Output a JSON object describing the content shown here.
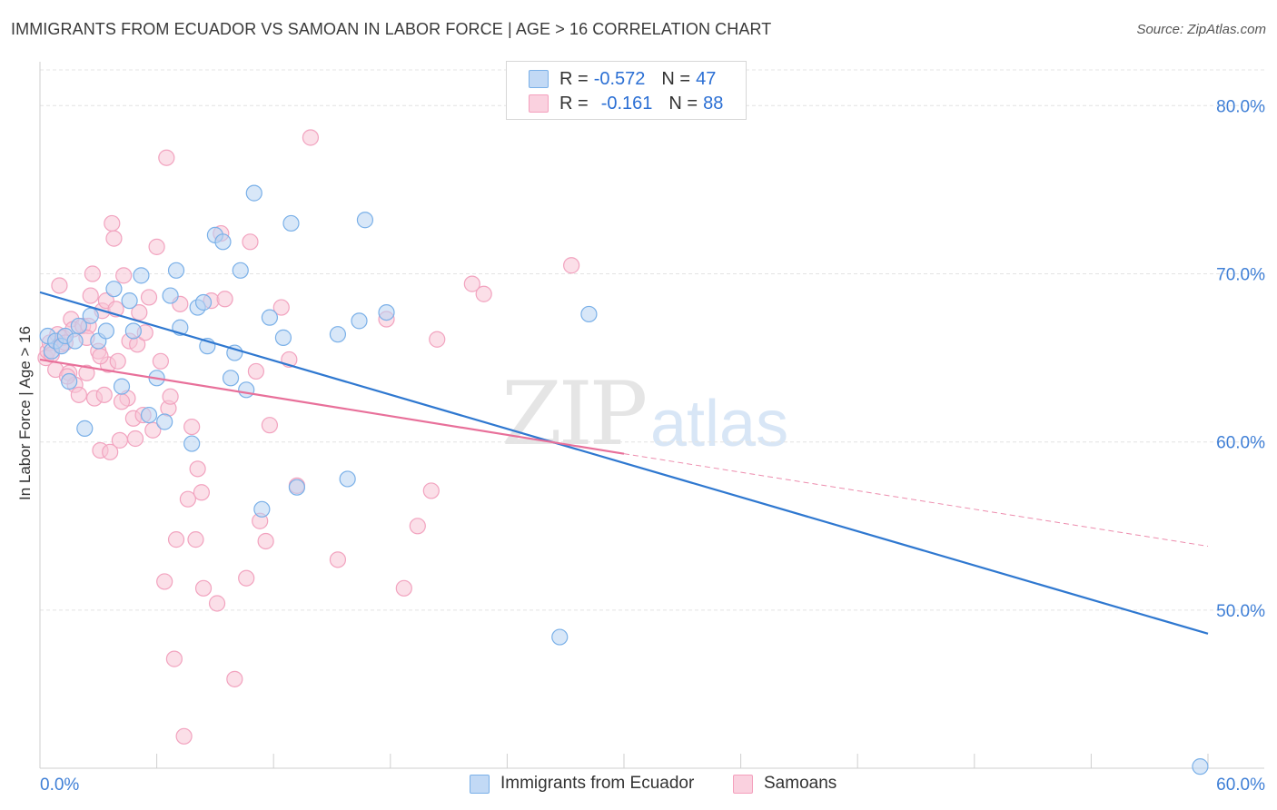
{
  "header": {
    "title": "IMMIGRANTS FROM ECUADOR VS SAMOAN IN LABOR FORCE | AGE > 16 CORRELATION CHART",
    "source": "Source: ZipAtlas.com"
  },
  "watermark": {
    "zip": "ZIP",
    "atlas": "atlas"
  },
  "legend": {
    "rows": [
      {
        "r_label": "R =",
        "r_value": "-0.572",
        "n_label": "N =",
        "n_value": "47",
        "color": "#7ab0e8"
      },
      {
        "r_label": "R =",
        "r_value": "-0.161",
        "n_label": "N =",
        "n_value": "88",
        "color": "#f4a0bd"
      }
    ]
  },
  "bottom_legend": {
    "items": [
      {
        "label": "Immigrants from Ecuador",
        "color": "#7ab0e8"
      },
      {
        "label": "Samoans",
        "color": "#f4a0bd"
      }
    ]
  },
  "chart_data": {
    "type": "scatter",
    "title": "IMMIGRANTS FROM ECUADOR VS SAMOAN IN LABOR FORCE | AGE > 16 CORRELATION CHART",
    "xlabel": "",
    "ylabel": "In Labor Force | Age > 16",
    "xlim": [
      0,
      60
    ],
    "ylim": [
      40.6,
      82.5
    ],
    "x_tick_labels": [
      "0.0%",
      "60.0%"
    ],
    "y_ticks": [
      50,
      60,
      70,
      80
    ],
    "y_tick_labels": [
      "50.0%",
      "60.0%",
      "70.0%",
      "80.0%"
    ],
    "grid": true,
    "legend_position": "top-center",
    "series": [
      {
        "name": "Immigrants from Ecuador",
        "color": "#2f78d0",
        "fill": "#b8d3f2",
        "trend": {
          "x": [
            0,
            60
          ],
          "y": [
            68.9,
            48.6
          ],
          "style": "solid"
        },
        "points": [
          [
            0.4,
            66.3
          ],
          [
            0.6,
            65.4
          ],
          [
            0.8,
            66.0
          ],
          [
            1.1,
            65.7
          ],
          [
            1.3,
            66.3
          ],
          [
            1.5,
            63.6
          ],
          [
            1.8,
            66.0
          ],
          [
            2.0,
            66.9
          ],
          [
            2.3,
            60.8
          ],
          [
            2.6,
            67.5
          ],
          [
            3.0,
            66.0
          ],
          [
            3.4,
            66.6
          ],
          [
            3.8,
            69.1
          ],
          [
            4.2,
            63.3
          ],
          [
            4.6,
            68.4
          ],
          [
            4.8,
            66.6
          ],
          [
            5.2,
            69.9
          ],
          [
            5.6,
            61.6
          ],
          [
            6.0,
            63.8
          ],
          [
            6.4,
            61.2
          ],
          [
            6.7,
            68.7
          ],
          [
            7.0,
            70.2
          ],
          [
            7.2,
            66.8
          ],
          [
            7.8,
            59.9
          ],
          [
            8.1,
            68.0
          ],
          [
            8.4,
            68.3
          ],
          [
            8.6,
            65.7
          ],
          [
            9.0,
            72.3
          ],
          [
            9.4,
            71.9
          ],
          [
            9.8,
            63.8
          ],
          [
            10.0,
            65.3
          ],
          [
            10.3,
            70.2
          ],
          [
            10.6,
            63.1
          ],
          [
            11.0,
            74.8
          ],
          [
            11.4,
            56.0
          ],
          [
            11.8,
            67.4
          ],
          [
            12.5,
            66.2
          ],
          [
            12.9,
            73.0
          ],
          [
            13.2,
            57.3
          ],
          [
            15.3,
            66.4
          ],
          [
            15.8,
            57.8
          ],
          [
            16.4,
            67.2
          ],
          [
            16.7,
            73.2
          ],
          [
            17.8,
            67.7
          ],
          [
            26.7,
            48.4
          ],
          [
            28.2,
            67.6
          ],
          [
            59.6,
            40.7
          ]
        ]
      },
      {
        "name": "Samoans",
        "color": "#e8709a",
        "fill": "#f8c4d5",
        "trend": {
          "x": [
            0,
            30,
            60
          ],
          "y": [
            64.9,
            59.3,
            53.8
          ],
          "solid_until": 30
        },
        "points": [
          [
            0.3,
            65.0
          ],
          [
            0.4,
            65.4
          ],
          [
            0.5,
            65.9
          ],
          [
            0.6,
            65.2
          ],
          [
            0.8,
            64.3
          ],
          [
            0.9,
            66.4
          ],
          [
            1.0,
            69.3
          ],
          [
            1.1,
            65.8
          ],
          [
            1.2,
            66.2
          ],
          [
            1.3,
            65.9
          ],
          [
            1.5,
            64.1
          ],
          [
            1.6,
            67.3
          ],
          [
            1.7,
            66.7
          ],
          [
            1.8,
            63.4
          ],
          [
            2.0,
            62.8
          ],
          [
            2.2,
            66.9
          ],
          [
            2.4,
            64.1
          ],
          [
            2.5,
            66.9
          ],
          [
            2.6,
            68.7
          ],
          [
            2.7,
            70.0
          ],
          [
            2.8,
            62.6
          ],
          [
            3.0,
            65.4
          ],
          [
            3.1,
            59.5
          ],
          [
            3.2,
            67.8
          ],
          [
            3.3,
            62.8
          ],
          [
            3.4,
            68.4
          ],
          [
            3.5,
            64.6
          ],
          [
            3.6,
            59.4
          ],
          [
            3.7,
            73.0
          ],
          [
            3.8,
            72.1
          ],
          [
            3.9,
            67.9
          ],
          [
            4.0,
            64.8
          ],
          [
            4.1,
            60.1
          ],
          [
            4.3,
            69.9
          ],
          [
            4.5,
            62.6
          ],
          [
            4.6,
            66.0
          ],
          [
            4.8,
            61.4
          ],
          [
            4.9,
            60.2
          ],
          [
            5.0,
            65.8
          ],
          [
            5.1,
            67.7
          ],
          [
            5.3,
            61.6
          ],
          [
            5.6,
            68.6
          ],
          [
            5.8,
            60.7
          ],
          [
            6.0,
            71.6
          ],
          [
            6.2,
            64.8
          ],
          [
            6.4,
            51.7
          ],
          [
            6.5,
            76.9
          ],
          [
            6.6,
            62.0
          ],
          [
            7.0,
            54.2
          ],
          [
            7.2,
            68.2
          ],
          [
            7.4,
            42.5
          ],
          [
            7.6,
            56.6
          ],
          [
            7.8,
            60.9
          ],
          [
            8.0,
            54.2
          ],
          [
            8.1,
            58.4
          ],
          [
            8.3,
            57.0
          ],
          [
            8.4,
            51.3
          ],
          [
            8.8,
            68.4
          ],
          [
            9.1,
            50.4
          ],
          [
            9.3,
            72.4
          ],
          [
            9.5,
            68.5
          ],
          [
            10.0,
            45.9
          ],
          [
            10.6,
            51.9
          ],
          [
            10.8,
            71.9
          ],
          [
            11.1,
            64.2
          ],
          [
            11.3,
            55.3
          ],
          [
            11.6,
            54.1
          ],
          [
            11.8,
            61.0
          ],
          [
            12.4,
            68.0
          ],
          [
            12.8,
            64.9
          ],
          [
            13.2,
            57.4
          ],
          [
            13.9,
            78.1
          ],
          [
            15.3,
            53.0
          ],
          [
            17.8,
            67.3
          ],
          [
            18.7,
            51.3
          ],
          [
            19.4,
            55.0
          ],
          [
            20.1,
            57.1
          ],
          [
            20.4,
            66.1
          ],
          [
            22.2,
            69.4
          ],
          [
            22.8,
            68.8
          ],
          [
            27.3,
            70.5
          ],
          [
            6.9,
            47.1
          ],
          [
            2.4,
            66.2
          ],
          [
            1.4,
            63.9
          ],
          [
            3.1,
            65.1
          ],
          [
            5.4,
            66.5
          ],
          [
            4.2,
            62.4
          ],
          [
            6.7,
            62.7
          ]
        ]
      }
    ]
  }
}
